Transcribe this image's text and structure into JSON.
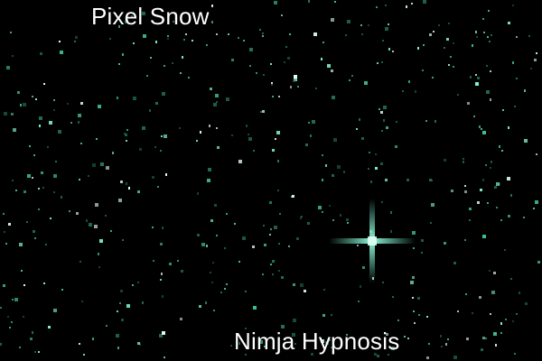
{
  "title": "Pixel Snow",
  "credit": "Nimja Hypnosis",
  "colors": {
    "background": "#000000",
    "text": "#ffffff",
    "flake_bright": "#7ff0d0",
    "flake_mid": "#3fbf8f",
    "flake_dim": "#1f6f4f",
    "flake_white": "#e0fff4",
    "cursor_glow": "#6fe8c8"
  },
  "icons": {
    "cursor": "crosshair-sparkle-icon"
  }
}
